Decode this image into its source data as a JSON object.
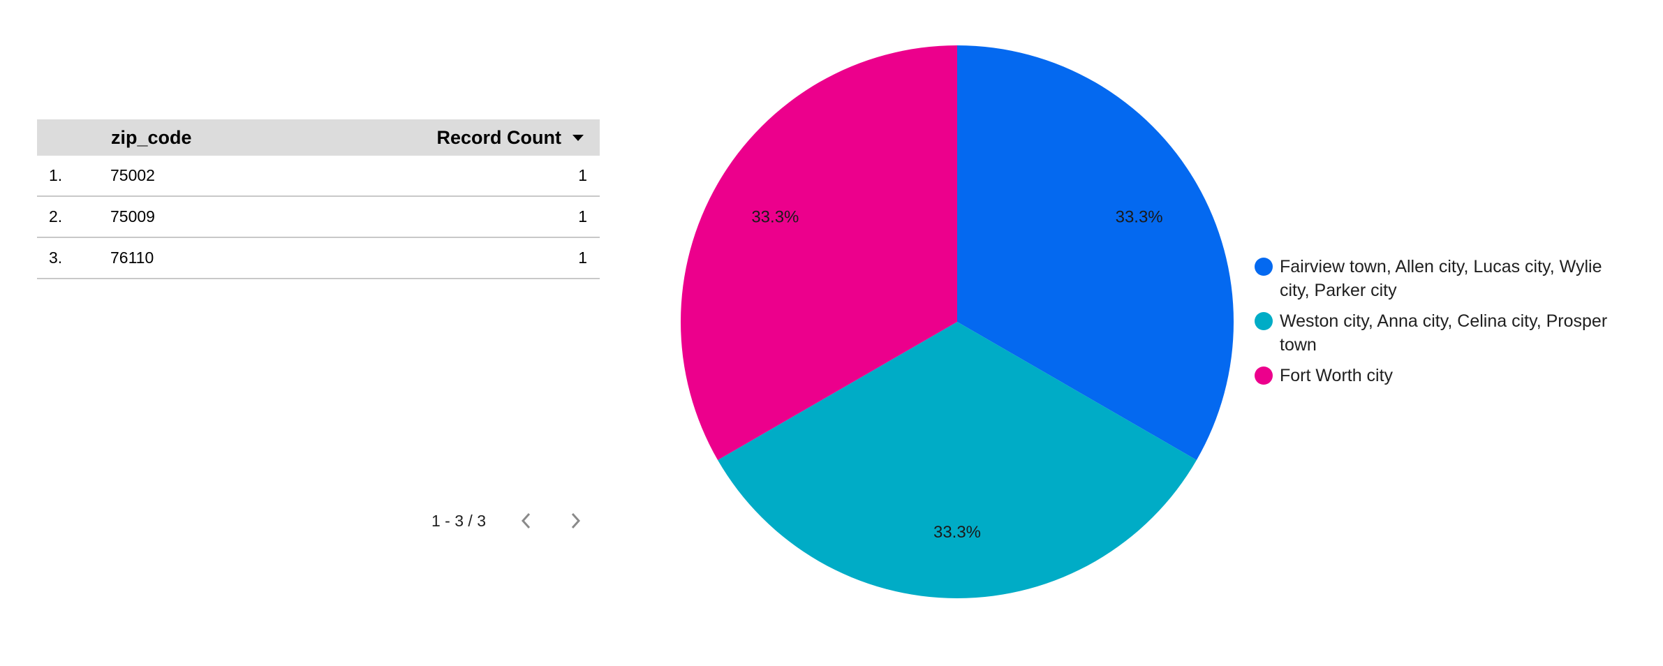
{
  "table": {
    "headers": {
      "zip": "zip_code",
      "count": "Record Count"
    },
    "rows": [
      {
        "index": "1.",
        "zip": "75002",
        "count": "1"
      },
      {
        "index": "2.",
        "zip": "75009",
        "count": "1"
      },
      {
        "index": "3.",
        "zip": "76110",
        "count": "1"
      }
    ],
    "pagination": "1 - 3 / 3",
    "icons": {
      "sort": "sort-descending-icon",
      "prev": "chevron-left-icon",
      "next": "chevron-right-icon"
    }
  },
  "chart_data": {
    "type": "pie",
    "slices": [
      {
        "label": "Fairview town, Allen city, Lucas city, Wylie city, Parker city",
        "value": 1,
        "percent_label": "33.3%",
        "color": "#0469f0"
      },
      {
        "label": "Weston city, Anna city, Celina city, Prosper town",
        "value": 1,
        "percent_label": "33.3%",
        "color": "#00acc6"
      },
      {
        "label": "Fort Worth city",
        "value": 1,
        "percent_label": "33.3%",
        "color": "#ec008c"
      }
    ],
    "legend_position": "right"
  }
}
